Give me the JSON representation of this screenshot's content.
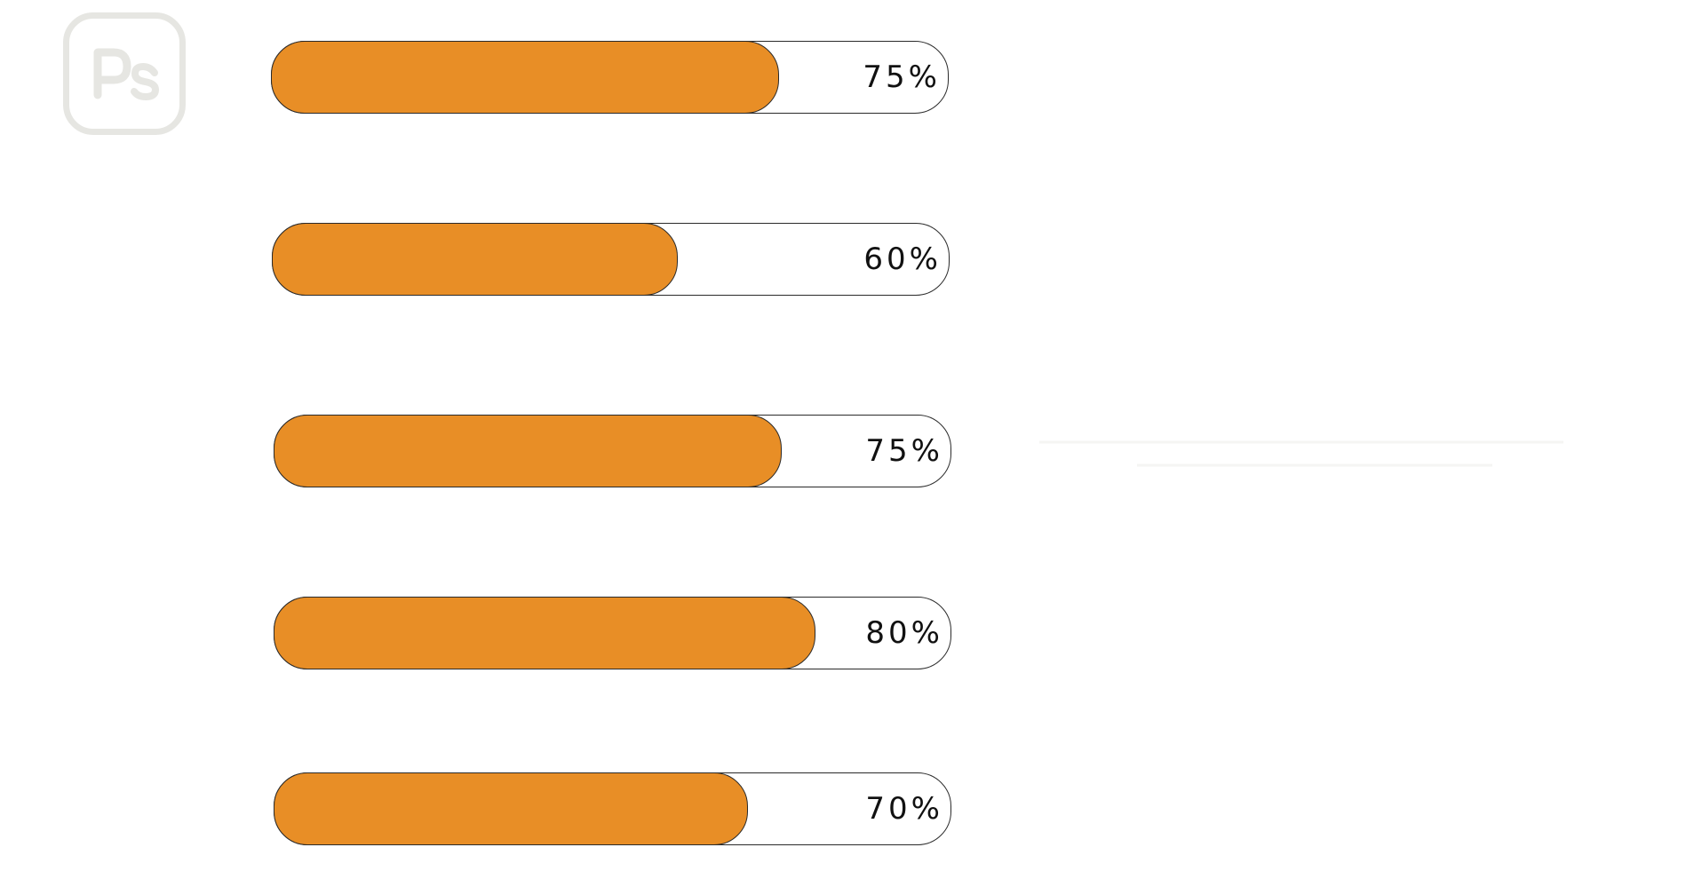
{
  "logo": {
    "text": "Ps",
    "icon": "photoshop-icon"
  },
  "colors": {
    "fill": "#e88e26",
    "track": "#ffffff",
    "outline": "#2a2a2a",
    "logo_outline": "#e6e6e2"
  },
  "bars": [
    {
      "value": 75,
      "label": "75%"
    },
    {
      "value": 60,
      "label": "60%"
    },
    {
      "value": 75,
      "label": "75%"
    },
    {
      "value": 80,
      "label": "80%"
    },
    {
      "value": 70,
      "label": "70%"
    }
  ]
}
